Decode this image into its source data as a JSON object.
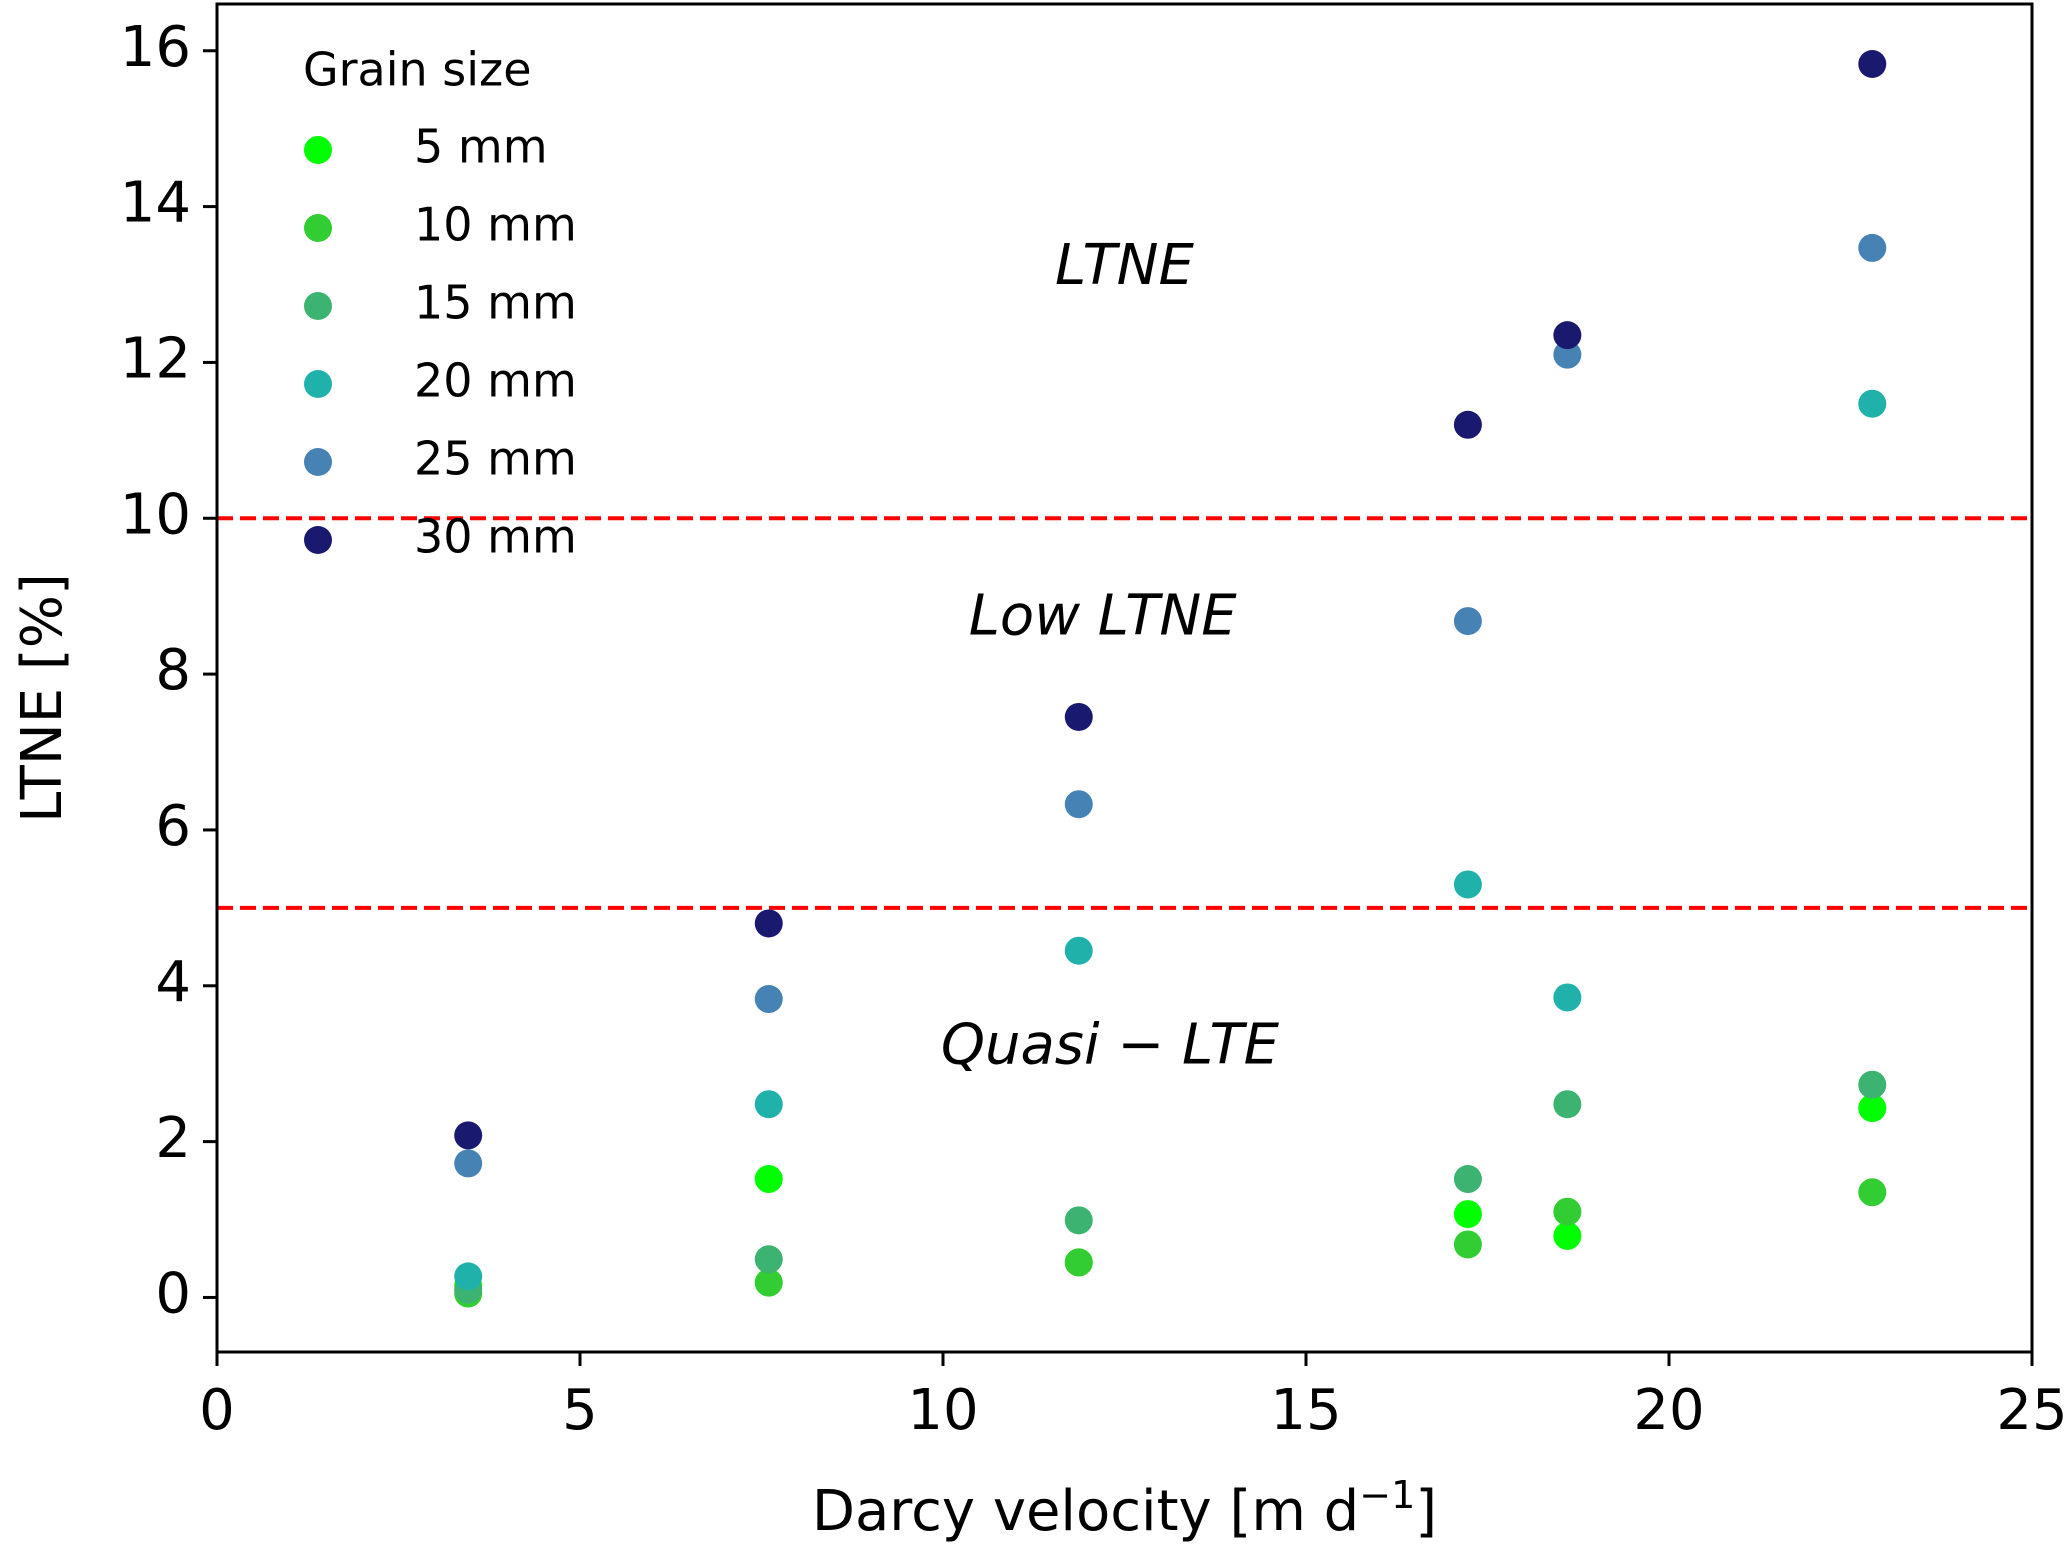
{
  "chart_data": {
    "type": "scatter",
    "xlabel": "Darcy velocity [m d",
    "xlabel_superscript": "−1",
    "xlabel_suffix": "]",
    "ylabel": "LTNE [%]",
    "xlim": [
      0,
      25
    ],
    "ylim": [
      -0.7,
      16.6
    ],
    "x_ticks": [
      0,
      5,
      10,
      15,
      20,
      25
    ],
    "y_ticks": [
      0,
      2,
      4,
      6,
      8,
      10,
      12,
      14,
      16
    ],
    "grid": false,
    "legend": {
      "placement": "top-left",
      "title": "Grain size"
    },
    "x": [
      3.46,
      7.6,
      11.87,
      17.23,
      18.6,
      22.8
    ],
    "series": [
      {
        "name": "5 mm",
        "color": "#00ff00",
        "values": [
          0.15,
          1.52,
          0.45,
          1.07,
          0.79,
          2.43
        ]
      },
      {
        "name": "10 mm",
        "color": "#32cd32",
        "values": [
          0.05,
          0.19,
          0.45,
          0.68,
          1.1,
          1.35
        ]
      },
      {
        "name": "15 mm",
        "color": "#3cb371",
        "values": [
          0.1,
          0.49,
          0.99,
          1.52,
          2.48,
          2.73
        ]
      },
      {
        "name": "20 mm",
        "color": "#20b2aa",
        "values": [
          0.27,
          2.48,
          4.45,
          5.3,
          3.85,
          11.47
        ]
      },
      {
        "name": "25 mm",
        "color": "#4682b4",
        "values": [
          1.72,
          3.83,
          6.33,
          8.68,
          12.1,
          13.47
        ]
      },
      {
        "name": "30 mm",
        "color": "#191970",
        "values": [
          2.08,
          4.8,
          7.45,
          11.2,
          12.35,
          15.83
        ]
      }
    ],
    "thresholds": [
      {
        "value": 10,
        "color": "#ff0000"
      },
      {
        "value": 5,
        "color": "#ff0000"
      }
    ],
    "annotations": [
      {
        "text": "LTNE",
        "x": 12.5,
        "y": 13.2
      },
      {
        "text": "Low LTNE",
        "x": 12.2,
        "y": 8.7
      },
      {
        "text": "Quasi − LTE",
        "x": 12.3,
        "y": 3.2
      }
    ]
  }
}
